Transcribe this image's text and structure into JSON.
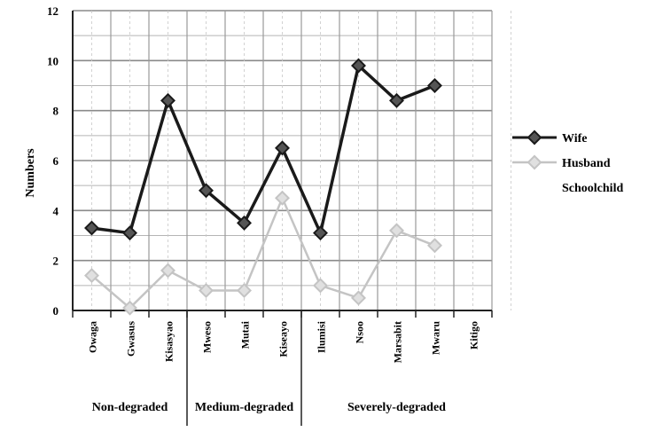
{
  "chart_data": {
    "type": "line",
    "ylabel": "Numbers",
    "ylim": [
      0,
      12
    ],
    "yticks": [
      "0",
      "2",
      "4",
      "6",
      "8",
      "10",
      "12"
    ],
    "categories": [
      "Owaga",
      "Gwasus",
      "Kisasyao",
      "Mweso",
      "Mutai",
      "Kiseayo",
      "Ilumisi",
      "Nsoo",
      "Marsabit",
      "Mwaru",
      "Kitigo"
    ],
    "groups": [
      {
        "label": "Non-degraded",
        "count": 3
      },
      {
        "label": "Medium-degraded",
        "count": 3
      },
      {
        "label": "Severely-degraded",
        "count": 5
      }
    ],
    "series": [
      {
        "name": "Wife",
        "color": "#1a1a1a",
        "values": [
          3.3,
          3.1,
          8.4,
          4.8,
          3.5,
          6.5,
          3.1,
          9.8,
          8.4,
          9.0,
          null
        ]
      },
      {
        "name": "Husband",
        "color": "#c4c4c4",
        "values": [
          1.4,
          0.1,
          1.6,
          0.8,
          0.8,
          4.5,
          1.0,
          0.5,
          3.2,
          2.6,
          null
        ]
      }
    ],
    "legend_extra": "Schoolchild",
    "legend_position": "right",
    "grid": true
  }
}
